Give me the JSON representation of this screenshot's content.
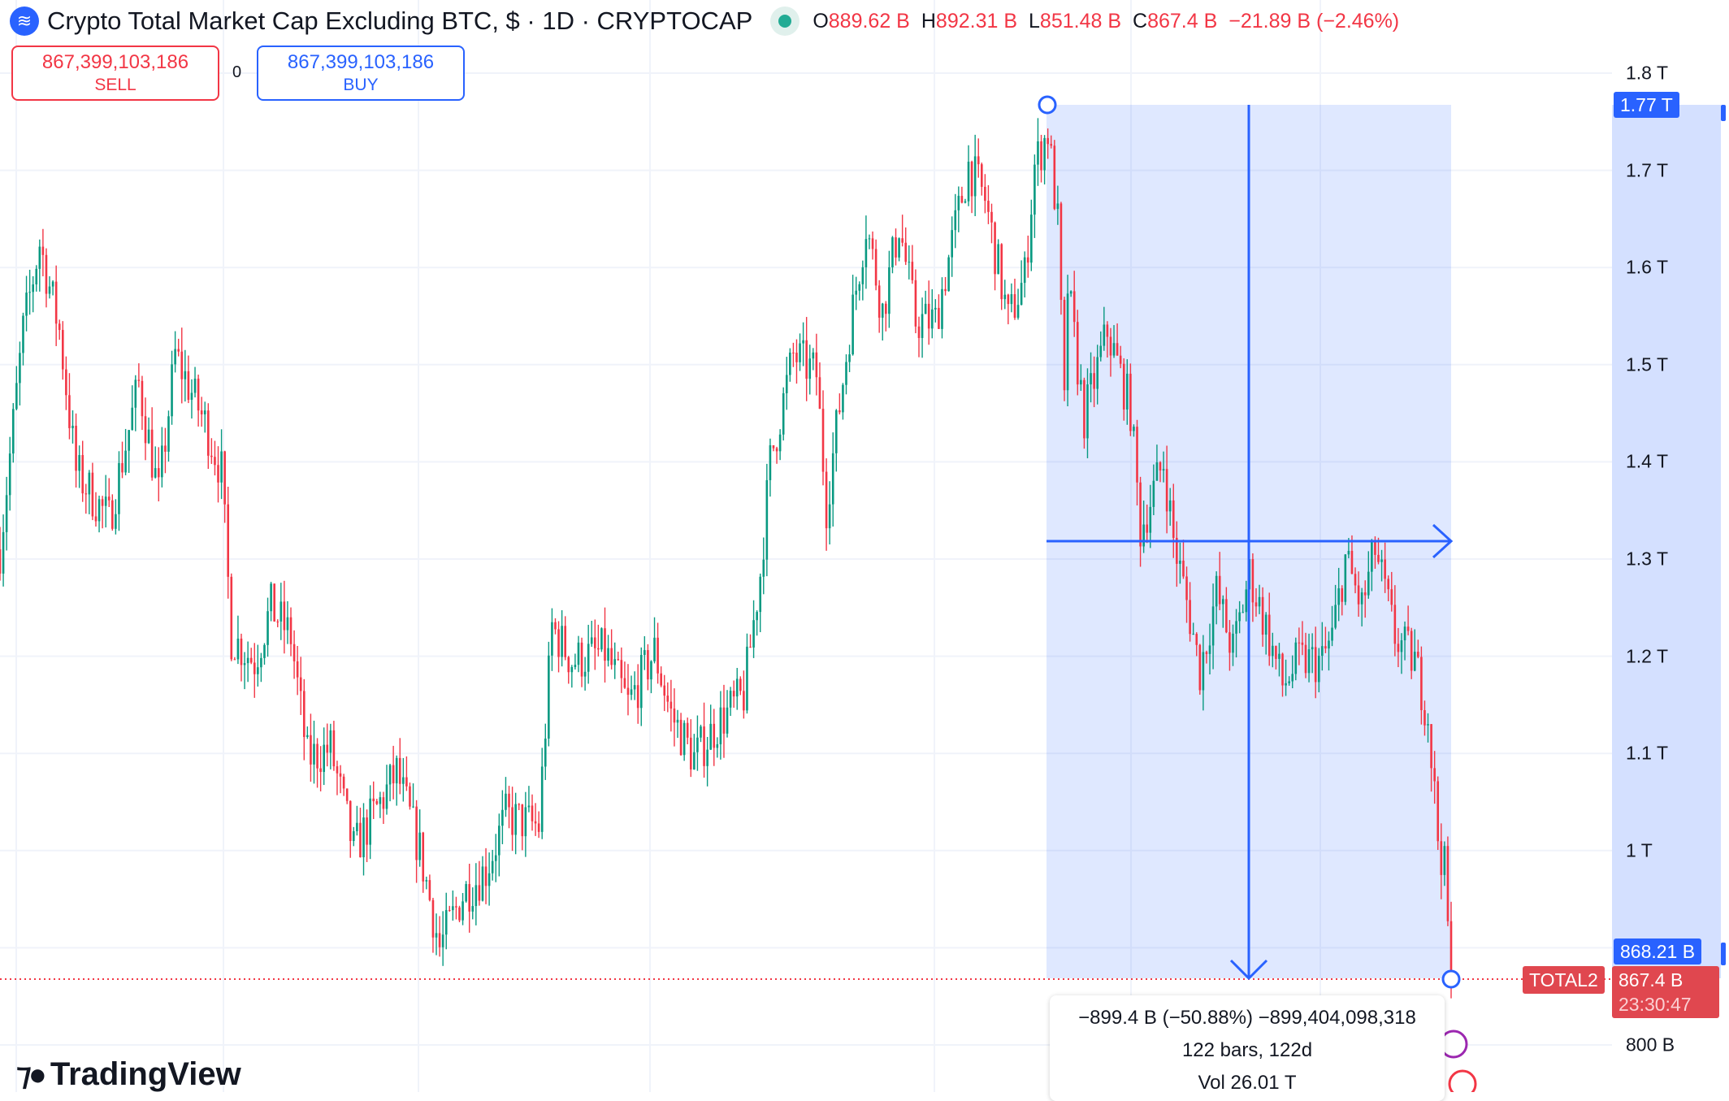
{
  "header": {
    "title": "Crypto Total Market Cap Excluding BTC, $ · 1D · CRYPTOCAP",
    "symbol_icon": "cryptocap-logo-icon",
    "market_status": "open",
    "ohlc": [
      {
        "k": "O",
        "v": "889.62 B"
      },
      {
        "k": "H",
        "v": "892.31 B"
      },
      {
        "k": "L",
        "v": "851.48 B"
      },
      {
        "k": "C",
        "v": "867.4 B"
      },
      {
        "k": "",
        "v": "−21.89 B (−2.46%)"
      }
    ]
  },
  "trade": {
    "sell_price": "867,399,103,186",
    "sell_label": "SELL",
    "spread": "0",
    "buy_price": "867,399,103,186",
    "buy_label": "BUY"
  },
  "price_axis": {
    "labels": [
      "1.8 T",
      "1.7 T",
      "1.6 T",
      "1.5 T",
      "1.4 T",
      "1.3 T",
      "1.2 T",
      "1.1 T",
      "1 T",
      "800 B"
    ],
    "range_high": "1.77 T",
    "range_low": "868.21 B",
    "symbol_tag": "TOTAL2",
    "last_price": "867.4 B",
    "countdown": "23:30:47"
  },
  "measure": {
    "change": "−899.4 B (−50.88%) −899,404,098,318",
    "bars": "122 bars, 122d",
    "volume": "Vol 26.01 T",
    "color": "#2962ff"
  },
  "brand": {
    "name": "TradingView"
  },
  "chart_data": {
    "type": "candlestick",
    "interval": "1D",
    "up_color": "#089981",
    "down_color": "#f23645",
    "ylim": [
      0.78,
      1.86
    ],
    "y_unit": "T",
    "yticks": [
      1.8,
      1.7,
      1.6,
      1.5,
      1.4,
      1.3,
      1.2,
      1.1,
      1.0,
      0.8
    ],
    "close_path": [
      [
        0,
        1.31
      ],
      [
        7,
        1.535
      ],
      [
        12,
        1.625
      ],
      [
        18,
        1.535
      ],
      [
        23,
        1.39
      ],
      [
        33,
        1.34
      ],
      [
        42,
        1.48
      ],
      [
        48,
        1.365
      ],
      [
        53,
        1.51
      ],
      [
        62,
        1.44
      ],
      [
        67,
        1.39
      ],
      [
        70,
        1.22
      ],
      [
        77,
        1.195
      ],
      [
        82,
        1.25
      ],
      [
        88,
        1.22
      ],
      [
        93,
        1.095
      ],
      [
        100,
        1.105
      ],
      [
        107,
        1.0
      ],
      [
        120,
        1.08
      ],
      [
        127,
        1.0
      ],
      [
        133,
        0.9
      ],
      [
        140,
        0.955
      ],
      [
        147,
        0.98
      ],
      [
        153,
        1.035
      ],
      [
        163,
        1.025
      ],
      [
        167,
        1.23
      ],
      [
        173,
        1.195
      ],
      [
        183,
        1.205
      ],
      [
        190,
        1.15
      ],
      [
        198,
        1.205
      ],
      [
        203,
        1.14
      ],
      [
        210,
        1.095
      ],
      [
        217,
        1.13
      ],
      [
        225,
        1.16
      ],
      [
        230,
        1.285
      ],
      [
        233,
        1.4
      ],
      [
        240,
        1.51
      ],
      [
        247,
        1.49
      ],
      [
        250,
        1.355
      ],
      [
        257,
        1.535
      ],
      [
        262,
        1.645
      ],
      [
        267,
        1.555
      ],
      [
        272,
        1.645
      ],
      [
        277,
        1.545
      ],
      [
        283,
        1.545
      ],
      [
        288,
        1.625
      ],
      [
        293,
        1.705
      ],
      [
        298,
        1.67
      ],
      [
        302,
        1.6
      ],
      [
        305,
        1.545
      ],
      [
        310,
        1.59
      ],
      [
        313,
        1.705
      ],
      [
        317,
        1.74
      ],
      [
        320,
        1.645
      ],
      [
        322,
        1.455
      ],
      [
        323,
        1.58
      ],
      [
        328,
        1.445
      ],
      [
        335,
        1.535
      ],
      [
        342,
        1.455
      ],
      [
        345,
        1.33
      ],
      [
        352,
        1.4
      ],
      [
        355,
        1.32
      ],
      [
        360,
        1.24
      ],
      [
        363,
        1.185
      ],
      [
        368,
        1.265
      ],
      [
        373,
        1.205
      ],
      [
        378,
        1.285
      ],
      [
        383,
        1.23
      ],
      [
        388,
        1.17
      ],
      [
        393,
        1.195
      ],
      [
        400,
        1.195
      ],
      [
        403,
        1.22
      ],
      [
        407,
        1.3
      ],
      [
        412,
        1.25
      ],
      [
        416,
        1.31
      ],
      [
        422,
        1.22
      ],
      [
        428,
        1.195
      ],
      [
        432,
        1.14
      ],
      [
        435,
        1.015
      ],
      [
        437,
        0.98
      ],
      [
        439,
        0.867
      ]
    ]
  }
}
